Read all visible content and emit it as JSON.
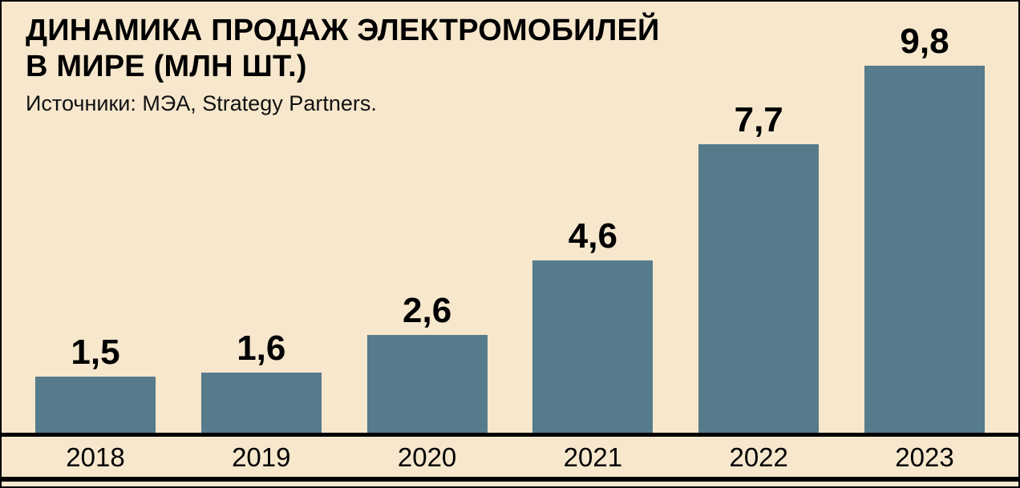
{
  "header": {
    "title_line1": "ДИНАМИКА ПРОДАЖ ЭЛЕКТРОМОБИЛЕЙ",
    "title_line2": "В МИРЕ (МЛН ШТ.)",
    "source": "Источники: МЭА, Strategy Partners."
  },
  "chart_data": {
    "type": "bar",
    "title": "ДИНАМИКА ПРОДАЖ ЭЛЕКТРОМОБИЛЕЙ В МИРЕ (МЛН ШТ.)",
    "source": "Источники: МЭА, Strategy Partners.",
    "categories": [
      "2018",
      "2019",
      "2020",
      "2021",
      "2022",
      "2023"
    ],
    "values": [
      1.5,
      1.6,
      2.6,
      4.6,
      7.7,
      9.8
    ],
    "value_labels": [
      "1,5",
      "1,6",
      "2,6",
      "4,6",
      "7,7",
      "9,8"
    ],
    "xlabel": "",
    "ylabel": "",
    "ylim": [
      0,
      10
    ],
    "grid": false,
    "legend": "none",
    "bar_color": "#567b8b",
    "background_color": "#f6e7cd",
    "text_color": "#000000"
  }
}
